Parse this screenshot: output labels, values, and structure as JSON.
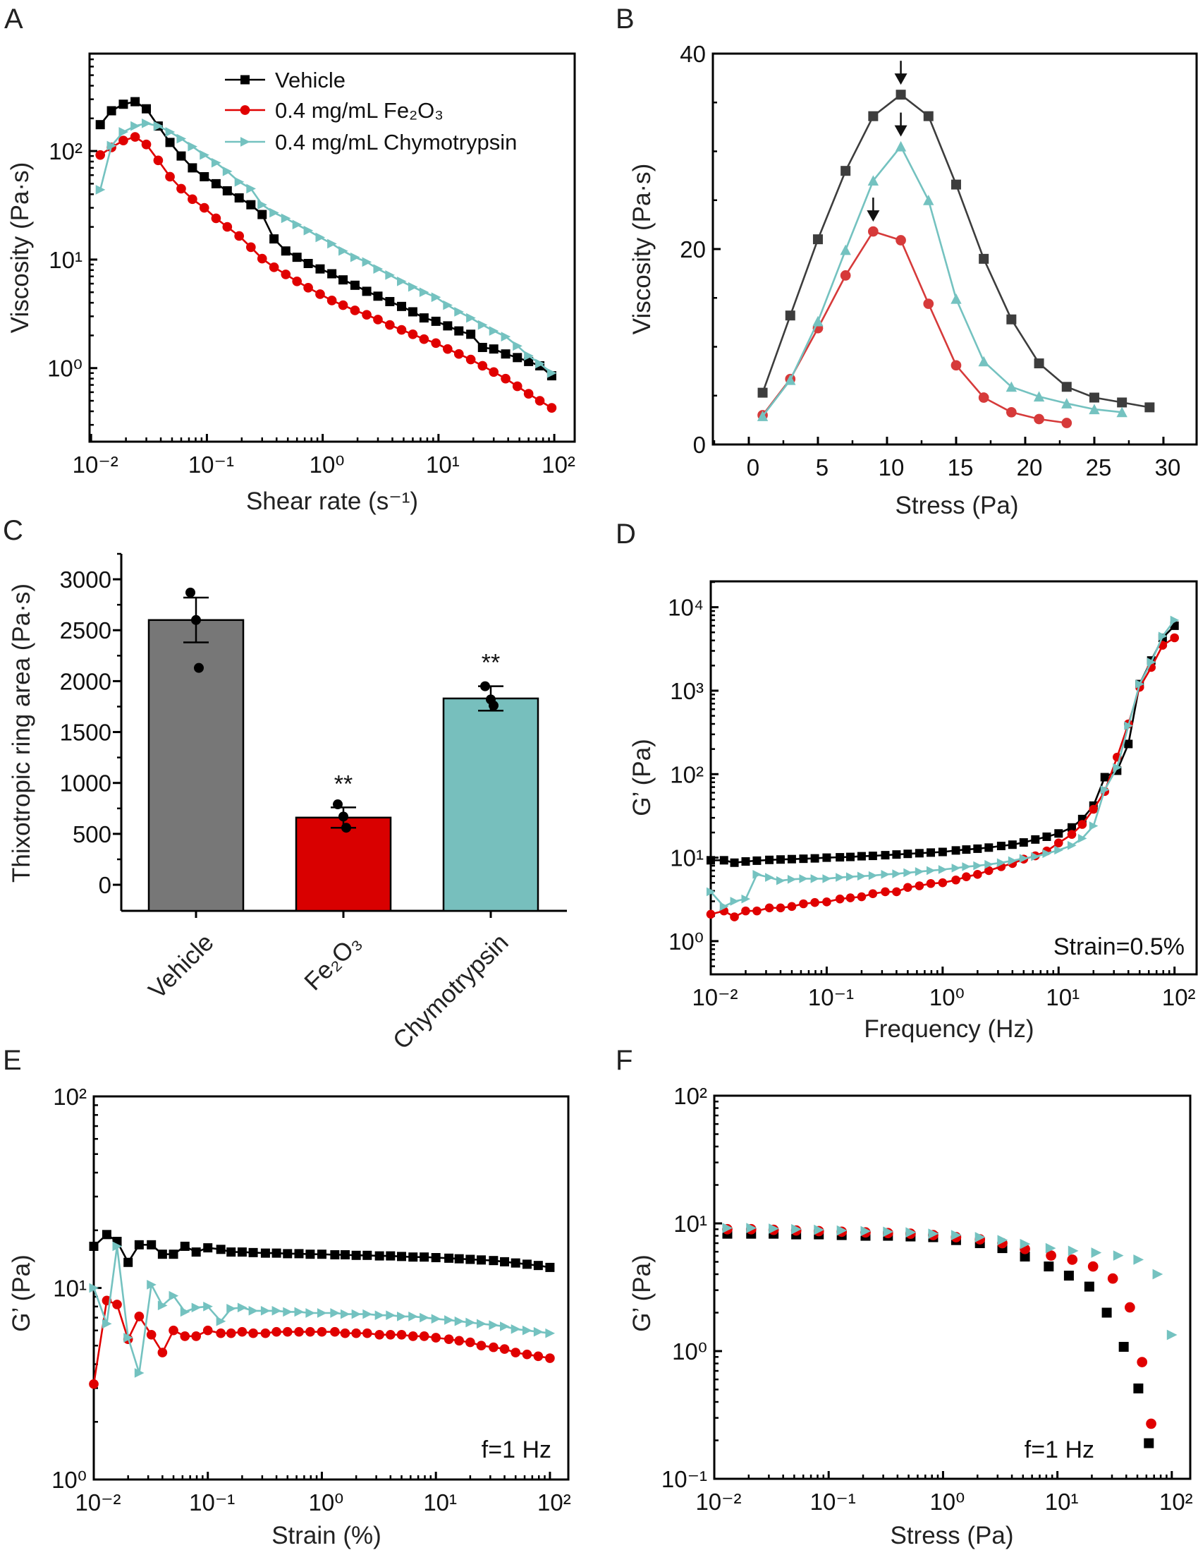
{
  "chart_data": [
    {
      "panel": "A",
      "type": "line",
      "xlabel": "Shear rate (s⁻¹)",
      "ylabel": "Viscosity (Pa·s)",
      "xscale": "log",
      "yscale": "log",
      "xlim": [
        0.0097,
        150
      ],
      "ylim": [
        0.21,
        790
      ],
      "xticks": [
        {
          "value": 0.01,
          "label": "10⁻²"
        },
        {
          "value": 0.1,
          "label": "10⁻¹"
        },
        {
          "value": 1,
          "label": "10⁰"
        },
        {
          "value": 10,
          "label": "10¹"
        },
        {
          "value": 100,
          "label": "10²"
        }
      ],
      "yticks": [
        {
          "value": 1,
          "label": "10⁰"
        },
        {
          "value": 10,
          "label": "10¹"
        },
        {
          "value": 100,
          "label": "10²"
        }
      ],
      "legend": "top-right",
      "x": [
        0.012,
        0.015,
        0.019,
        0.024,
        0.03,
        0.038,
        0.048,
        0.06,
        0.075,
        0.095,
        0.12,
        0.15,
        0.19,
        0.24,
        0.3,
        0.38,
        0.48,
        0.6,
        0.75,
        0.95,
        1.2,
        1.5,
        1.9,
        2.4,
        3,
        3.8,
        4.8,
        6,
        7.5,
        9.5,
        12,
        15,
        19,
        24,
        30,
        38,
        48,
        60,
        75,
        95
      ],
      "series": [
        {
          "name": "Vehicle",
          "color": "#000000",
          "marker": "square",
          "values": [
            175,
            235,
            270,
            285,
            245,
            170,
            120,
            90,
            70,
            58,
            50,
            43,
            37,
            32,
            26,
            15.5,
            12,
            10.5,
            9.2,
            8.2,
            7.4,
            6.5,
            5.8,
            5.1,
            4.6,
            4.1,
            3.7,
            3.3,
            2.9,
            2.7,
            2.45,
            2.2,
            2.05,
            1.55,
            1.5,
            1.35,
            1.25,
            1.15,
            1.05,
            0.85
          ]
        },
        {
          "name": "0.4 mg/mL Fe₂O₃",
          "color": "#e00000",
          "marker": "circle",
          "values": [
            92,
            108,
            125,
            135,
            115,
            82,
            58,
            45,
            36,
            30,
            24,
            20,
            16.5,
            13,
            10.2,
            8.5,
            7.3,
            6.3,
            5.5,
            4.8,
            4.2,
            3.8,
            3.4,
            3.1,
            2.8,
            2.5,
            2.25,
            2.05,
            1.85,
            1.7,
            1.5,
            1.35,
            1.2,
            1.05,
            0.92,
            0.8,
            0.68,
            0.58,
            0.5,
            0.43
          ]
        },
        {
          "name": "0.4 mg/mL Chymotrypsin",
          "color": "#74c2c0",
          "marker": "triangle-right",
          "values": [
            44,
            112,
            150,
            170,
            180,
            170,
            150,
            130,
            110,
            92,
            78,
            65,
            52,
            45,
            32,
            27,
            24,
            21,
            18.5,
            16,
            14,
            12,
            10.5,
            9.5,
            8.2,
            7.2,
            6.3,
            5.6,
            5,
            4.5,
            3.8,
            3.3,
            2.9,
            2.5,
            2.2,
            1.95,
            1.6,
            1.3,
            1.1,
            0.9
          ]
        }
      ]
    },
    {
      "panel": "B",
      "type": "line",
      "xlabel": "Stress (Pa)",
      "ylabel": "Viscosity (Pa·s)",
      "xscale": "linear",
      "yscale": "linear",
      "xlim": [
        -2.6,
        32.4
      ],
      "ylim": [
        0,
        40
      ],
      "xticks": [
        {
          "value": 0,
          "label": "0"
        },
        {
          "value": 5,
          "label": "5"
        },
        {
          "value": 10,
          "label": "10"
        },
        {
          "value": 15,
          "label": "15"
        },
        {
          "value": 20,
          "label": "20"
        },
        {
          "value": 25,
          "label": "25"
        },
        {
          "value": 30,
          "label": "30"
        }
      ],
      "yticks": [
        {
          "value": 0,
          "label": "0"
        },
        {
          "value": 20,
          "label": "20"
        },
        {
          "value": 40,
          "label": "40"
        }
      ],
      "series": [
        {
          "color": "#3d3d3d",
          "marker": "square",
          "x": [
            1,
            3,
            5,
            7,
            9,
            11,
            13,
            15,
            17,
            19,
            21,
            23,
            25,
            27,
            29
          ],
          "values": [
            5.3,
            13.2,
            21,
            28,
            33.6,
            35.8,
            33.6,
            26.6,
            19,
            12.8,
            8.3,
            5.9,
            4.8,
            4.3,
            3.8
          ]
        },
        {
          "color": "#d63a3a",
          "marker": "circle",
          "x": [
            1,
            3,
            5,
            7,
            9,
            11,
            13,
            15,
            17,
            19,
            21,
            23
          ],
          "values": [
            3.0,
            6.7,
            11.9,
            17.3,
            21.8,
            20.9,
            14.4,
            8.1,
            4.8,
            3.3,
            2.6,
            2.2
          ]
        },
        {
          "color": "#74c2c0",
          "marker": "triangle-up",
          "x": [
            1,
            3,
            5,
            7,
            9,
            11,
            13,
            15,
            17,
            19,
            21,
            23,
            25,
            27
          ],
          "values": [
            2.9,
            6.6,
            12.6,
            19.9,
            27,
            30.5,
            25,
            14.9,
            8.5,
            5.9,
            4.9,
            4.2,
            3.6,
            3.3
          ]
        }
      ],
      "peak_arrows": [
        {
          "x": 11,
          "y": 35.8
        },
        {
          "x": 11,
          "y": 30.5
        },
        {
          "x": 9,
          "y": 21.8
        }
      ]
    },
    {
      "panel": "C",
      "type": "bar",
      "ylabel": "Thixotropic ring area (Pa·s)",
      "ylim": [
        -256,
        3250
      ],
      "yticks": [
        {
          "value": 0,
          "label": "0"
        },
        {
          "value": 500,
          "label": "500"
        },
        {
          "value": 1000,
          "label": "1000"
        },
        {
          "value": 1500,
          "label": "1500"
        },
        {
          "value": 2000,
          "label": "2000"
        },
        {
          "value": 2500,
          "label": "2500"
        },
        {
          "value": 3000,
          "label": "3000"
        }
      ],
      "categories": [
        "Vehicle",
        "Fe₂O₃",
        "Chymotrypsin"
      ],
      "values": [
        2600,
        660,
        1830
      ],
      "errors": [
        220,
        100,
        120
      ],
      "points": [
        [
          2870,
          2600,
          2130
        ],
        [
          790,
          670,
          560
        ],
        [
          1950,
          1820,
          1760
        ]
      ],
      "colors": [
        "#777777",
        "#d90000",
        "#77bfbd"
      ],
      "significance": [
        "",
        "**",
        "**"
      ]
    },
    {
      "panel": "D",
      "type": "line",
      "xlabel": "Frequency (Hz)",
      "ylabel": "G’ (Pa)",
      "annotation": "Strain=0.5%",
      "xscale": "log",
      "yscale": "log",
      "xlim": [
        0.01,
        155
      ],
      "ylim": [
        0.4,
        20400
      ],
      "xticks": [
        {
          "value": 0.01,
          "label": "10⁻²"
        },
        {
          "value": 0.1,
          "label": "10⁻¹"
        },
        {
          "value": 1,
          "label": "10⁰"
        },
        {
          "value": 10,
          "label": "10¹"
        },
        {
          "value": 100,
          "label": "10²"
        }
      ],
      "yticks": [
        {
          "value": 1,
          "label": "10⁰"
        },
        {
          "value": 10,
          "label": "10¹"
        },
        {
          "value": 100,
          "label": "10²"
        },
        {
          "value": 1000,
          "label": "10³"
        },
        {
          "value": 10000,
          "label": "10⁴"
        }
      ],
      "x": [
        0.01,
        0.013,
        0.016,
        0.02,
        0.025,
        0.032,
        0.04,
        0.05,
        0.063,
        0.079,
        0.1,
        0.13,
        0.16,
        0.2,
        0.25,
        0.32,
        0.4,
        0.5,
        0.63,
        0.79,
        1,
        1.3,
        1.6,
        2,
        2.5,
        3.2,
        4,
        5,
        6.3,
        7.9,
        10,
        13,
        16,
        20,
        25,
        32,
        40,
        50,
        63,
        79,
        100
      ],
      "series": [
        {
          "color": "#000000",
          "marker": "square",
          "values": [
            9.3,
            9.3,
            8.7,
            9,
            9.2,
            9.4,
            9.5,
            9.6,
            9.7,
            9.8,
            10,
            10.1,
            10.2,
            10.4,
            10.5,
            10.7,
            10.9,
            11.1,
            11.3,
            11.5,
            11.7,
            12.2,
            12.5,
            12.8,
            13.2,
            13.8,
            14.3,
            15.2,
            16.5,
            17.8,
            19.5,
            23,
            29,
            42,
            92,
            110,
            230,
            1200,
            2300,
            4300,
            6000
          ]
        },
        {
          "color": "#e00000",
          "marker": "circle",
          "values": [
            2.1,
            2.3,
            1.95,
            2.3,
            2.3,
            2.5,
            2.5,
            2.6,
            2.8,
            2.9,
            2.95,
            3.2,
            3.3,
            3.4,
            3.7,
            3.9,
            3.9,
            4.4,
            4.6,
            4.9,
            5.0,
            5.4,
            5.9,
            6.3,
            7.0,
            7.8,
            8.5,
            9.6,
            10.5,
            12,
            15,
            19,
            25,
            38,
            62,
            160,
            400,
            1100,
            1900,
            3500,
            4300
          ]
        },
        {
          "color": "#74c2c0",
          "marker": "triangle-right",
          "values": [
            3.9,
            2.6,
            3.0,
            3.2,
            6.3,
            5.8,
            5.3,
            5.5,
            5.6,
            5.6,
            5.6,
            5.8,
            5.9,
            6.0,
            6.1,
            6.3,
            6.4,
            6.6,
            6.8,
            7.0,
            7.2,
            7.5,
            7.8,
            8.0,
            8.3,
            8.7,
            9.2,
            9.8,
            10.3,
            11.2,
            12.3,
            14,
            17,
            24,
            65,
            120,
            380,
            1200,
            2200,
            4500,
            7000
          ]
        }
      ]
    },
    {
      "panel": "E",
      "type": "line",
      "xlabel": "Strain (%)",
      "ylabel": "G’ (Pa)",
      "annotation": "f=1 Hz",
      "xscale": "log",
      "yscale": "log",
      "xlim": [
        0.01,
        145
      ],
      "ylim": [
        1,
        100
      ],
      "xticks": [
        {
          "value": 0.01,
          "label": "10⁻²"
        },
        {
          "value": 0.1,
          "label": "10⁻¹"
        },
        {
          "value": 1,
          "label": "10⁰"
        },
        {
          "value": 10,
          "label": "10¹"
        },
        {
          "value": 100,
          "label": "10²"
        }
      ],
      "yticks": [
        {
          "value": 1,
          "label": "10⁰"
        },
        {
          "value": 10,
          "label": "10¹"
        },
        {
          "value": 100,
          "label": "10²"
        }
      ],
      "x": [
        0.01,
        0.013,
        0.016,
        0.02,
        0.025,
        0.032,
        0.04,
        0.05,
        0.063,
        0.079,
        0.1,
        0.13,
        0.16,
        0.2,
        0.25,
        0.32,
        0.4,
        0.5,
        0.63,
        0.79,
        1,
        1.3,
        1.6,
        2,
        2.5,
        3.2,
        4,
        5,
        6.3,
        7.9,
        10,
        13,
        16,
        20,
        25,
        32,
        40,
        50,
        63,
        79,
        100
      ],
      "series": [
        {
          "color": "#000000",
          "marker": "square",
          "values": [
            16.5,
            19,
            17.5,
            13.6,
            16.8,
            16.8,
            15,
            15,
            16.5,
            15.4,
            16.2,
            15.9,
            15.4,
            15.4,
            15.3,
            15.2,
            15.2,
            15.1,
            15.1,
            15.0,
            15.0,
            14.9,
            14.9,
            14.8,
            14.8,
            14.7,
            14.7,
            14.6,
            14.5,
            14.5,
            14.4,
            14.3,
            14.2,
            14.1,
            14.0,
            13.9,
            13.7,
            13.5,
            13.3,
            13.1,
            12.8
          ]
        },
        {
          "color": "#e00000",
          "marker": "circle",
          "values": [
            3.15,
            8.6,
            8.2,
            5.4,
            7.1,
            5.7,
            4.6,
            6.0,
            5.6,
            5.6,
            6.0,
            5.8,
            5.8,
            5.9,
            5.8,
            5.8,
            5.9,
            5.9,
            5.9,
            5.9,
            5.9,
            5.9,
            5.8,
            5.8,
            5.8,
            5.7,
            5.7,
            5.7,
            5.6,
            5.6,
            5.5,
            5.4,
            5.3,
            5.2,
            5.0,
            4.9,
            4.8,
            4.6,
            4.5,
            4.4,
            4.3
          ]
        },
        {
          "color": "#74c2c0",
          "marker": "triangle-right",
          "values": [
            10,
            6.5,
            16.5,
            5.5,
            3.6,
            10.4,
            8.1,
            9.1,
            7.5,
            7.9,
            8.0,
            6.7,
            7.8,
            7.9,
            7.6,
            7.6,
            7.6,
            7.5,
            7.5,
            7.4,
            7.4,
            7.4,
            7.3,
            7.3,
            7.3,
            7.2,
            7.2,
            7.1,
            7.1,
            7.0,
            6.9,
            6.8,
            6.7,
            6.6,
            6.5,
            6.4,
            6.3,
            6.1,
            6.0,
            5.9,
            5.8
          ]
        }
      ]
    },
    {
      "panel": "F",
      "type": "scatter",
      "xlabel": "Stress (Pa)",
      "ylabel": "G’ (Pa)",
      "annotation": "f=1 Hz",
      "xscale": "log",
      "yscale": "log",
      "xlim": [
        0.01,
        145
      ],
      "ylim": [
        0.1,
        100
      ],
      "xticks": [
        {
          "value": 0.01,
          "label": "10⁻²"
        },
        {
          "value": 0.1,
          "label": "10⁻¹"
        },
        {
          "value": 1,
          "label": "10⁰"
        },
        {
          "value": 10,
          "label": "10¹"
        },
        {
          "value": 100,
          "label": "10²"
        }
      ],
      "yticks": [
        {
          "value": 0.1,
          "label": "10⁻¹"
        },
        {
          "value": 1,
          "label": "10⁰"
        },
        {
          "value": 10,
          "label": "10¹"
        },
        {
          "value": 100,
          "label": "10²"
        }
      ],
      "series": [
        {
          "color": "#000000",
          "marker": "square",
          "x": [
            0.013,
            0.021,
            0.033,
            0.052,
            0.082,
            0.13,
            0.21,
            0.33,
            0.52,
            0.82,
            1.3,
            2.1,
            3.3,
            5.2,
            8.4,
            12.6,
            19,
            27,
            38,
            51,
            63
          ],
          "values": [
            8.3,
            8.3,
            8.3,
            8.2,
            8.2,
            8.1,
            8.0,
            8.0,
            7.9,
            7.8,
            7.4,
            7.0,
            6.4,
            5.5,
            4.6,
            3.9,
            3.2,
            2.0,
            1.08,
            0.51,
            0.19
          ]
        },
        {
          "color": "#e00000",
          "marker": "circle",
          "x": [
            0.013,
            0.021,
            0.033,
            0.052,
            0.082,
            0.13,
            0.21,
            0.33,
            0.52,
            0.82,
            1.3,
            2.1,
            3.3,
            5.2,
            8.8,
            13.5,
            20.5,
            30.5,
            43,
            55,
            66
          ],
          "values": [
            9.0,
            9.0,
            8.9,
            8.8,
            8.7,
            8.6,
            8.5,
            8.4,
            8.3,
            8.1,
            7.8,
            7.5,
            7.0,
            6.3,
            5.6,
            5.2,
            4.6,
            3.7,
            2.2,
            0.82,
            0.27
          ]
        },
        {
          "color": "#74c2c0",
          "marker": "triangle-right",
          "x": [
            0.013,
            0.021,
            0.033,
            0.052,
            0.082,
            0.13,
            0.21,
            0.33,
            0.52,
            0.82,
            1.3,
            2.1,
            3.3,
            5.2,
            8.7,
            13.7,
            21.8,
            34,
            51,
            75,
            100
          ],
          "values": [
            9.2,
            9.2,
            9.1,
            9.0,
            8.9,
            8.8,
            8.7,
            8.6,
            8.5,
            8.3,
            8.1,
            7.8,
            7.4,
            6.9,
            6.4,
            6.1,
            5.9,
            5.6,
            5.2,
            4.0,
            1.34
          ]
        }
      ]
    }
  ]
}
